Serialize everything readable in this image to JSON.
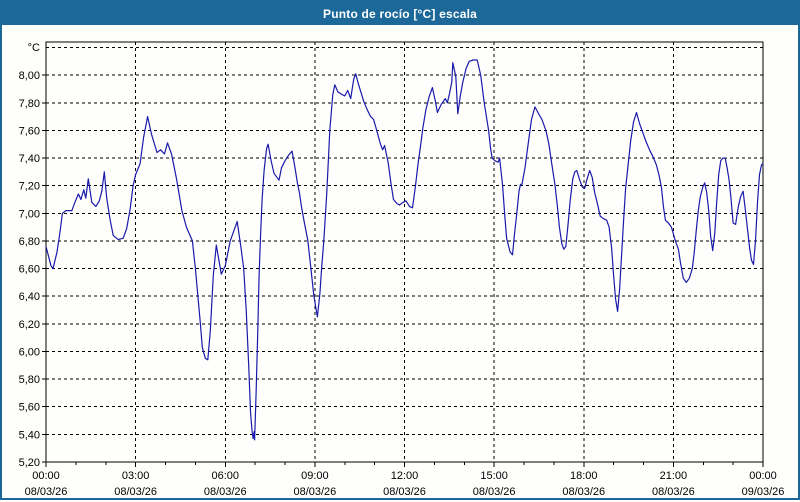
{
  "window": {
    "title": "Punto de rocío [°C] escala"
  },
  "colors": {
    "titlebar_bg": "#1c6899",
    "titlebar_text": "#ffffff",
    "border": "#1c6899",
    "plot_bg": "#fefefc",
    "grid": "#000000",
    "axis": "#000000",
    "label_text": "#000000",
    "series_line": "#1a1aaa"
  },
  "chart_data": {
    "type": "line",
    "title": "Punto de rocío [°C] escala",
    "y_unit_label": "°C",
    "xlabel": "",
    "ylabel": "°C",
    "ylim": [
      5.2,
      8.24
    ],
    "x_range_minutes": [
      0,
      1440
    ],
    "grid": "dashed",
    "legend": "none",
    "y_ticks": [
      {
        "v": 8.2,
        "label": ""
      },
      {
        "v": 8.0,
        "label": "8,00"
      },
      {
        "v": 7.8,
        "label": "7,80"
      },
      {
        "v": 7.6,
        "label": "7,60"
      },
      {
        "v": 7.4,
        "label": "7,40"
      },
      {
        "v": 7.2,
        "label": "7,20"
      },
      {
        "v": 7.0,
        "label": "7,00"
      },
      {
        "v": 6.8,
        "label": "6,80"
      },
      {
        "v": 6.6,
        "label": "6,60"
      },
      {
        "v": 6.4,
        "label": "6,40"
      },
      {
        "v": 6.2,
        "label": "6,20"
      },
      {
        "v": 6.0,
        "label": "6,00"
      },
      {
        "v": 5.8,
        "label": "5,80"
      },
      {
        "v": 5.6,
        "label": "5,60"
      },
      {
        "v": 5.4,
        "label": "5,40"
      },
      {
        "v": 5.2,
        "label": "5,20"
      }
    ],
    "x_ticks": [
      {
        "minutes": 0,
        "time": "00:00",
        "date": "08/03/26"
      },
      {
        "minutes": 180,
        "time": "03:00",
        "date": "08/03/26"
      },
      {
        "minutes": 360,
        "time": "06:00",
        "date": "08/03/26"
      },
      {
        "minutes": 540,
        "time": "09:00",
        "date": "08/03/26"
      },
      {
        "minutes": 720,
        "time": "12:00",
        "date": "08/03/26"
      },
      {
        "minutes": 900,
        "time": "15:00",
        "date": "08/03/26"
      },
      {
        "minutes": 1080,
        "time": "18:00",
        "date": "08/03/26"
      },
      {
        "minutes": 1260,
        "time": "21:00",
        "date": "08/03/26"
      },
      {
        "minutes": 1440,
        "time": "00:00",
        "date": "09/03/26"
      }
    ],
    "x_minor_tick_every_minutes": 60,
    "series": [
      {
        "name": "Punto de rocío",
        "color": "#1a1aaa",
        "points": [
          [
            0,
            6.76
          ],
          [
            10,
            6.62
          ],
          [
            14,
            6.6
          ],
          [
            22,
            6.72
          ],
          [
            28,
            6.86
          ],
          [
            33,
            7.0
          ],
          [
            40,
            7.02
          ],
          [
            52,
            7.02
          ],
          [
            58,
            7.08
          ],
          [
            65,
            7.14
          ],
          [
            70,
            7.1
          ],
          [
            76,
            7.17
          ],
          [
            80,
            7.11
          ],
          [
            85,
            7.25
          ],
          [
            92,
            7.08
          ],
          [
            100,
            7.05
          ],
          [
            107,
            7.09
          ],
          [
            112,
            7.16
          ],
          [
            117,
            7.3
          ],
          [
            122,
            7.11
          ],
          [
            129,
            6.95
          ],
          [
            135,
            6.84
          ],
          [
            145,
            6.81
          ],
          [
            155,
            6.82
          ],
          [
            162,
            6.89
          ],
          [
            169,
            7.03
          ],
          [
            175,
            7.2
          ],
          [
            180,
            7.28
          ],
          [
            189,
            7.36
          ],
          [
            196,
            7.55
          ],
          [
            204,
            7.7
          ],
          [
            212,
            7.57
          ],
          [
            223,
            7.44
          ],
          [
            230,
            7.46
          ],
          [
            238,
            7.43
          ],
          [
            244,
            7.51
          ],
          [
            252,
            7.43
          ],
          [
            262,
            7.25
          ],
          [
            273,
            7.02
          ],
          [
            282,
            6.9
          ],
          [
            294,
            6.8
          ],
          [
            300,
            6.6
          ],
          [
            310,
            6.2
          ],
          [
            314,
            6.03
          ],
          [
            320,
            5.95
          ],
          [
            325,
            5.94
          ],
          [
            330,
            6.15
          ],
          [
            336,
            6.55
          ],
          [
            342,
            6.77
          ],
          [
            352,
            6.56
          ],
          [
            360,
            6.62
          ],
          [
            370,
            6.8
          ],
          [
            384,
            6.94
          ],
          [
            392,
            6.74
          ],
          [
            397,
            6.6
          ],
          [
            402,
            6.3
          ],
          [
            407,
            5.9
          ],
          [
            411,
            5.55
          ],
          [
            414,
            5.42
          ],
          [
            416,
            5.37
          ],
          [
            418,
            5.42
          ],
          [
            419,
            5.36
          ],
          [
            422,
            5.7
          ],
          [
            425,
            6.1
          ],
          [
            428,
            6.55
          ],
          [
            431,
            6.85
          ],
          [
            434,
            7.1
          ],
          [
            438,
            7.31
          ],
          [
            443,
            7.47
          ],
          [
            446,
            7.5
          ],
          [
            452,
            7.38
          ],
          [
            458,
            7.29
          ],
          [
            468,
            7.24
          ],
          [
            473,
            7.33
          ],
          [
            480,
            7.38
          ],
          [
            487,
            7.42
          ],
          [
            494,
            7.45
          ],
          [
            500,
            7.33
          ],
          [
            505,
            7.22
          ],
          [
            509,
            7.15
          ],
          [
            513,
            7.05
          ],
          [
            518,
            6.95
          ],
          [
            526,
            6.8
          ],
          [
            532,
            6.6
          ],
          [
            538,
            6.4
          ],
          [
            545,
            6.25
          ],
          [
            550,
            6.42
          ],
          [
            554,
            6.62
          ],
          [
            558,
            6.8
          ],
          [
            564,
            7.15
          ],
          [
            570,
            7.6
          ],
          [
            576,
            7.86
          ],
          [
            580,
            7.93
          ],
          [
            586,
            7.88
          ],
          [
            594,
            7.86
          ],
          [
            600,
            7.85
          ],
          [
            606,
            7.89
          ],
          [
            612,
            7.83
          ],
          [
            618,
            7.97
          ],
          [
            622,
            8.01
          ],
          [
            627,
            7.94
          ],
          [
            633,
            7.87
          ],
          [
            638,
            7.81
          ],
          [
            645,
            7.75
          ],
          [
            652,
            7.7
          ],
          [
            658,
            7.68
          ],
          [
            665,
            7.59
          ],
          [
            671,
            7.51
          ],
          [
            676,
            7.46
          ],
          [
            680,
            7.49
          ],
          [
            687,
            7.37
          ],
          [
            693,
            7.21
          ],
          [
            698,
            7.1
          ],
          [
            705,
            7.07
          ],
          [
            710,
            7.06
          ],
          [
            717,
            7.08
          ],
          [
            723,
            7.09
          ],
          [
            730,
            7.05
          ],
          [
            736,
            7.04
          ],
          [
            742,
            7.2
          ],
          [
            747,
            7.35
          ],
          [
            752,
            7.48
          ],
          [
            757,
            7.62
          ],
          [
            763,
            7.75
          ],
          [
            770,
            7.85
          ],
          [
            776,
            7.91
          ],
          [
            782,
            7.81
          ],
          [
            786,
            7.73
          ],
          [
            794,
            7.79
          ],
          [
            802,
            7.83
          ],
          [
            806,
            7.8
          ],
          [
            810,
            7.86
          ],
          [
            815,
            7.95
          ],
          [
            817,
            8.09
          ],
          [
            820,
            8.04
          ],
          [
            823,
            7.99
          ],
          [
            827,
            7.72
          ],
          [
            832,
            7.85
          ],
          [
            837,
            7.95
          ],
          [
            844,
            8.05
          ],
          [
            850,
            8.1
          ],
          [
            858,
            8.11
          ],
          [
            866,
            8.11
          ],
          [
            873,
            8.0
          ],
          [
            880,
            7.8
          ],
          [
            889,
            7.6
          ],
          [
            893,
            7.47
          ],
          [
            896,
            7.4
          ],
          [
            902,
            7.38
          ],
          [
            908,
            7.37
          ],
          [
            911,
            7.4
          ],
          [
            917,
            7.2
          ],
          [
            921,
            7.0
          ],
          [
            925,
            6.82
          ],
          [
            932,
            6.72
          ],
          [
            937,
            6.7
          ],
          [
            941,
            6.85
          ],
          [
            945,
            6.98
          ],
          [
            950,
            7.16
          ],
          [
            953,
            7.21
          ],
          [
            956,
            7.21
          ],
          [
            962,
            7.33
          ],
          [
            969,
            7.52
          ],
          [
            975,
            7.68
          ],
          [
            982,
            7.77
          ],
          [
            988,
            7.73
          ],
          [
            996,
            7.68
          ],
          [
            1004,
            7.6
          ],
          [
            1010,
            7.5
          ],
          [
            1014,
            7.4
          ],
          [
            1019,
            7.28
          ],
          [
            1022,
            7.21
          ],
          [
            1027,
            7.05
          ],
          [
            1031,
            6.9
          ],
          [
            1036,
            6.78
          ],
          [
            1040,
            6.74
          ],
          [
            1044,
            6.76
          ],
          [
            1048,
            6.9
          ],
          [
            1053,
            7.1
          ],
          [
            1058,
            7.25
          ],
          [
            1062,
            7.3
          ],
          [
            1066,
            7.31
          ],
          [
            1071,
            7.25
          ],
          [
            1077,
            7.19
          ],
          [
            1082,
            7.18
          ],
          [
            1086,
            7.24
          ],
          [
            1092,
            7.31
          ],
          [
            1097,
            7.26
          ],
          [
            1102,
            7.15
          ],
          [
            1108,
            7.06
          ],
          [
            1113,
            6.98
          ],
          [
            1120,
            6.96
          ],
          [
            1126,
            6.95
          ],
          [
            1131,
            6.9
          ],
          [
            1136,
            6.75
          ],
          [
            1140,
            6.55
          ],
          [
            1144,
            6.38
          ],
          [
            1148,
            6.29
          ],
          [
            1152,
            6.45
          ],
          [
            1156,
            6.7
          ],
          [
            1160,
            6.95
          ],
          [
            1164,
            7.18
          ],
          [
            1169,
            7.35
          ],
          [
            1174,
            7.52
          ],
          [
            1180,
            7.66
          ],
          [
            1186,
            7.73
          ],
          [
            1192,
            7.65
          ],
          [
            1199,
            7.58
          ],
          [
            1205,
            7.52
          ],
          [
            1212,
            7.46
          ],
          [
            1219,
            7.41
          ],
          [
            1226,
            7.35
          ],
          [
            1231,
            7.28
          ],
          [
            1236,
            7.19
          ],
          [
            1240,
            7.05
          ],
          [
            1244,
            6.95
          ],
          [
            1250,
            6.93
          ],
          [
            1256,
            6.9
          ],
          [
            1260,
            6.85
          ],
          [
            1264,
            6.8
          ],
          [
            1270,
            6.74
          ],
          [
            1274,
            6.65
          ],
          [
            1280,
            6.53
          ],
          [
            1286,
            6.5
          ],
          [
            1292,
            6.53
          ],
          [
            1298,
            6.6
          ],
          [
            1302,
            6.72
          ],
          [
            1306,
            6.88
          ],
          [
            1310,
            7.02
          ],
          [
            1314,
            7.12
          ],
          [
            1319,
            7.19
          ],
          [
            1323,
            7.22
          ],
          [
            1327,
            7.15
          ],
          [
            1331,
            7.02
          ],
          [
            1335,
            6.83
          ],
          [
            1339,
            6.73
          ],
          [
            1343,
            6.85
          ],
          [
            1347,
            7.08
          ],
          [
            1351,
            7.28
          ],
          [
            1355,
            7.38
          ],
          [
            1359,
            7.4
          ],
          [
            1364,
            7.4
          ],
          [
            1368,
            7.33
          ],
          [
            1372,
            7.24
          ],
          [
            1376,
            7.1
          ],
          [
            1380,
            6.93
          ],
          [
            1385,
            6.92
          ],
          [
            1390,
            7.04
          ],
          [
            1395,
            7.12
          ],
          [
            1400,
            7.16
          ],
          [
            1405,
            7.01
          ],
          [
            1409,
            6.88
          ],
          [
            1413,
            6.75
          ],
          [
            1417,
            6.66
          ],
          [
            1421,
            6.63
          ],
          [
            1425,
            6.8
          ],
          [
            1429,
            7.08
          ],
          [
            1433,
            7.28
          ],
          [
            1437,
            7.35
          ],
          [
            1440,
            7.36
          ]
        ]
      }
    ]
  }
}
